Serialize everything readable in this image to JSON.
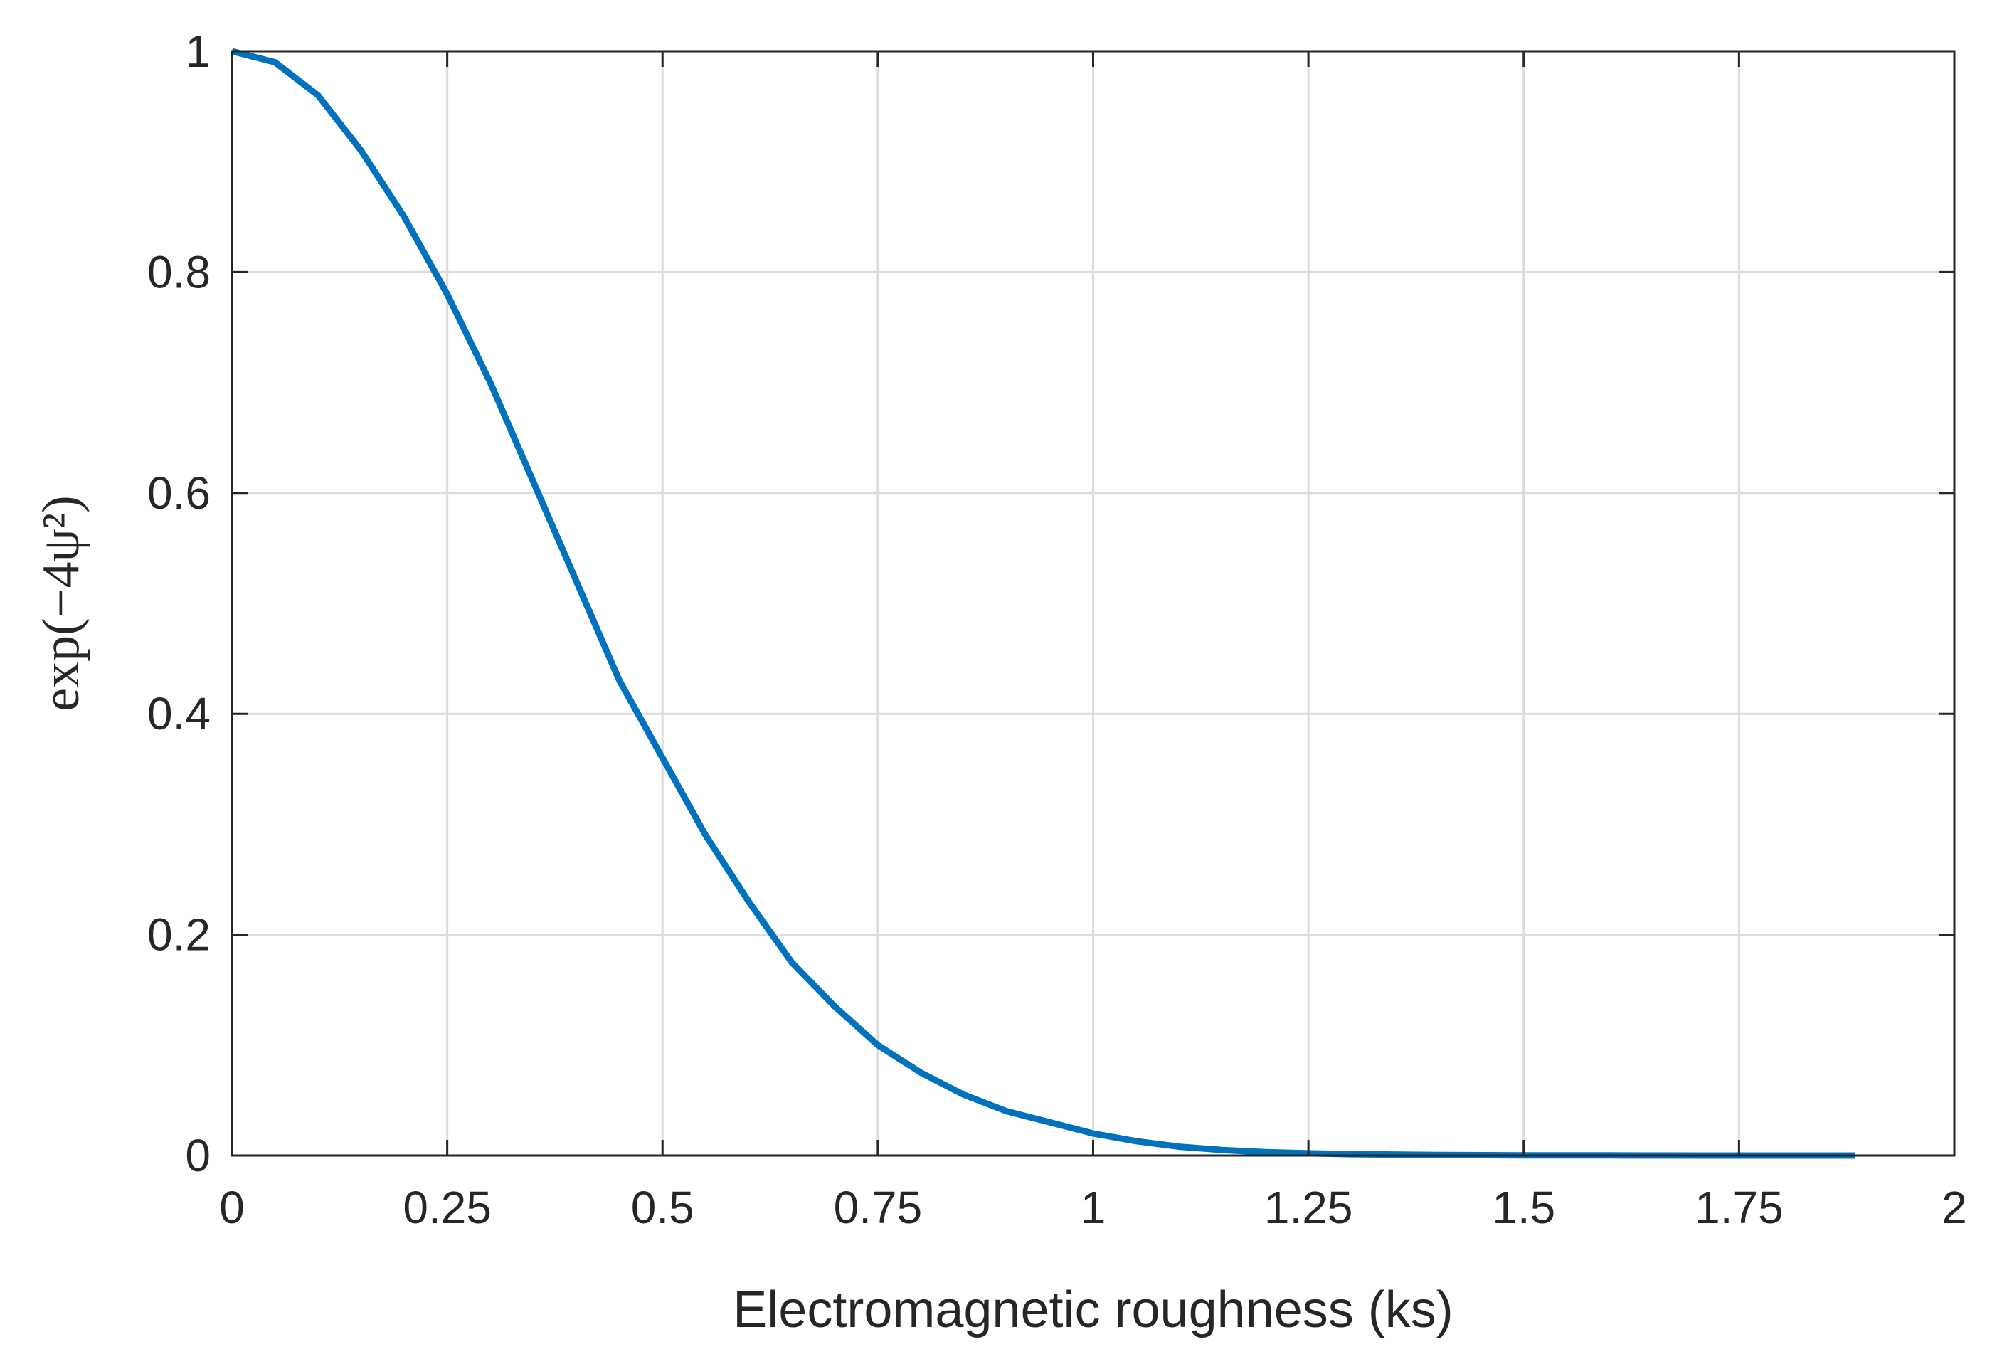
{
  "chart_data": {
    "type": "line",
    "title": "",
    "xlabel": "Electromagnetic roughness (ks)",
    "ylabel": "exp(−4ψ²)",
    "xlim": [
      0,
      2
    ],
    "ylim": [
      0,
      1
    ],
    "xticks": [
      0,
      0.25,
      0.5,
      0.75,
      1,
      1.25,
      1.5,
      1.75,
      2
    ],
    "xtick_labels": [
      "0",
      "0.25",
      "0.5",
      "0.75",
      "1",
      "1.25",
      "1.5",
      "1.75",
      "2"
    ],
    "yticks": [
      0,
      0.2,
      0.4,
      0.6,
      0.8,
      1
    ],
    "ytick_labels": [
      "0",
      "0.2",
      "0.4",
      "0.6",
      "0.8",
      "1"
    ],
    "grid": true,
    "series": [
      {
        "color": "#0072bd",
        "x": [
          0,
          0.05,
          0.1,
          0.15,
          0.2,
          0.25,
          0.3,
          0.35,
          0.4,
          0.45,
          0.5,
          0.55,
          0.6,
          0.65,
          0.7,
          0.75,
          0.8,
          0.85,
          0.9,
          0.95,
          1.0,
          1.05,
          1.1,
          1.15,
          1.2,
          1.25,
          1.3,
          1.4,
          1.5,
          1.6,
          1.7,
          1.8,
          1.885
        ],
        "y": [
          1.0,
          0.99,
          0.96,
          0.91,
          0.85,
          0.78,
          0.7,
          0.61,
          0.52,
          0.43,
          0.36,
          0.29,
          0.23,
          0.175,
          0.135,
          0.1,
          0.075,
          0.055,
          0.04,
          0.03,
          0.02,
          0.013,
          0.008,
          0.005,
          0.003,
          0.002,
          0.0012,
          0.0005,
          0.0002,
          0.0001,
          3e-05,
          1e-05,
          0.0
        ]
      }
    ]
  }
}
